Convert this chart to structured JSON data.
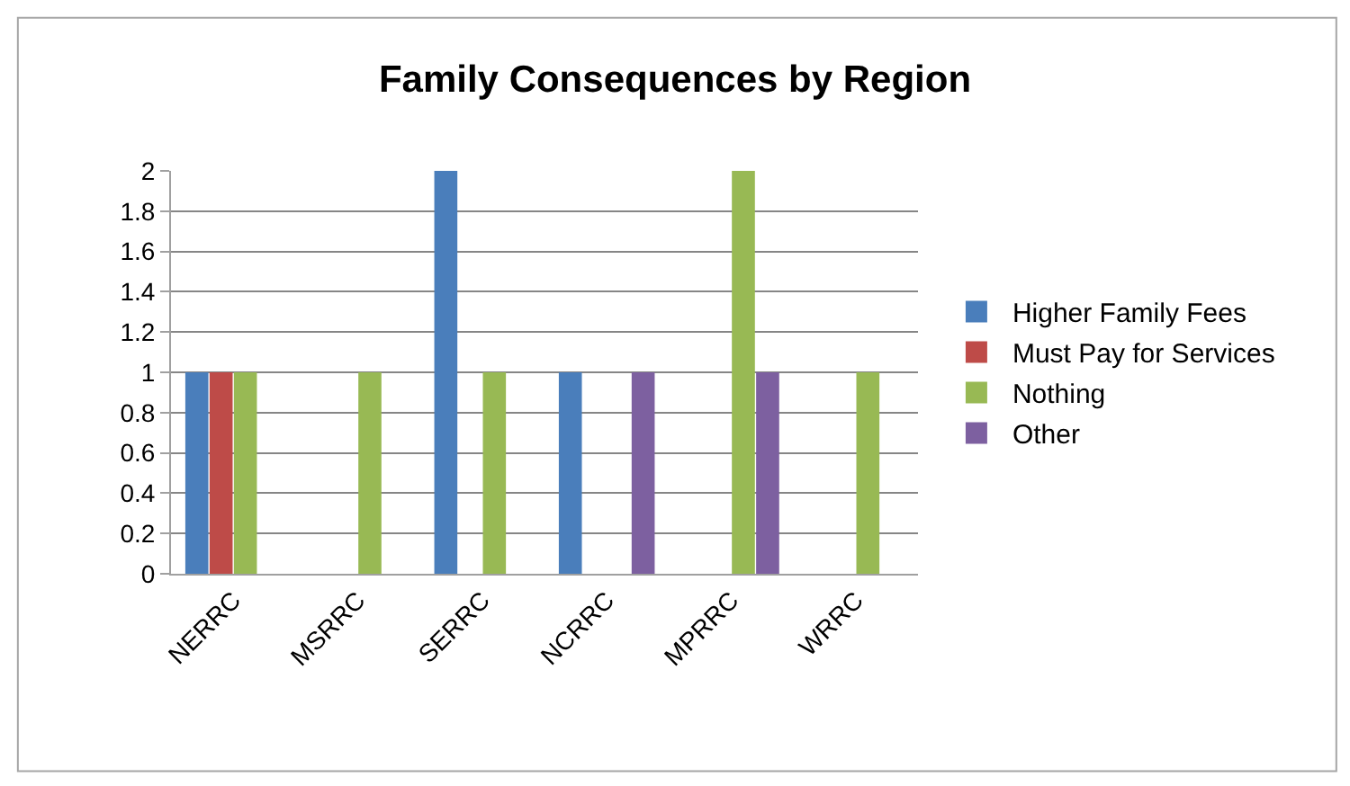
{
  "chart_data": {
    "type": "bar",
    "title": "Family Consequences by Region",
    "categories": [
      "NERRC",
      "MSRRC",
      "SERRC",
      "NCRRC",
      "MPRRC",
      "WRRC"
    ],
    "series": [
      {
        "name": "Higher Family Fees",
        "color": "#4a7ebb",
        "values": [
          1,
          0,
          2,
          1,
          0,
          0
        ]
      },
      {
        "name": "Must Pay for Services",
        "color": "#be4b48",
        "values": [
          1,
          0,
          0,
          0,
          0,
          0
        ]
      },
      {
        "name": "Nothing",
        "color": "#98b954",
        "values": [
          1,
          1,
          1,
          0,
          2,
          1
        ]
      },
      {
        "name": "Other",
        "color": "#7d60a0",
        "values": [
          0,
          0,
          0,
          1,
          1,
          0
        ]
      }
    ],
    "ylim": [
      0,
      2
    ],
    "yticks": [
      0,
      0.2,
      0.4,
      0.6,
      0.8,
      1,
      1.2,
      1.4,
      1.6,
      1.8,
      2
    ],
    "grid": "y",
    "legend": "right"
  }
}
